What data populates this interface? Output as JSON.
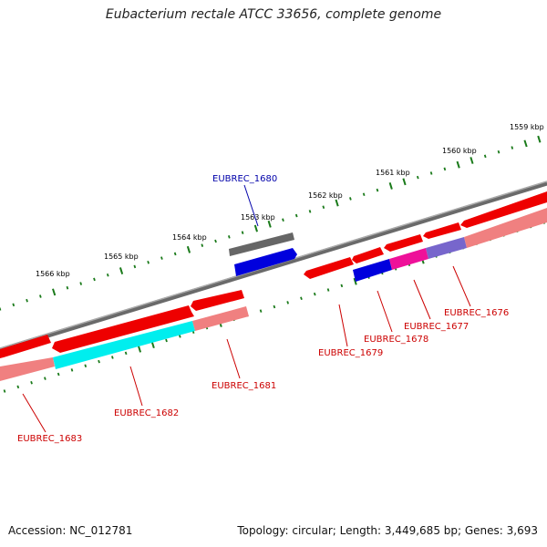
{
  "title": "Eubacterium rectale ATCC 33656, complete genome",
  "footer": {
    "accession": "Accession: NC_012781",
    "summary": "Topology: circular; Length: 3,449,685 bp; Genes: 3,693"
  },
  "kbp_labels": [
    "1559 kbp",
    "1560 kbp",
    "1561 kbp",
    "1562 kbp",
    "1563 kbp",
    "1564 kbp",
    "1565 kbp",
    "1566 kbp"
  ],
  "gene_labels": [
    {
      "name": "EUBREC_1680",
      "color": "#0000aa"
    },
    {
      "name": "EUBREC_1681",
      "color": "#cc0000"
    },
    {
      "name": "EUBREC_1682",
      "color": "#cc0000"
    },
    {
      "name": "EUBREC_1683",
      "color": "#cc0000"
    },
    {
      "name": "EUBREC_1679",
      "color": "#cc0000"
    },
    {
      "name": "EUBREC_1678",
      "color": "#cc0000"
    },
    {
      "name": "EUBREC_1677",
      "color": "#cc0000"
    },
    {
      "name": "EUBREC_1676",
      "color": "#cc0000"
    }
  ],
  "colors": {
    "backbone": "#888888",
    "gene_red": "#ee0000",
    "gene_pink": "#f08080",
    "gene_cyan": "#00eeee",
    "gene_blue": "#0000dd",
    "gene_magenta": "#ee1199",
    "gene_purple": "#7766cc",
    "gene_gray": "#666666",
    "tick_green": "#1a7a1a"
  }
}
